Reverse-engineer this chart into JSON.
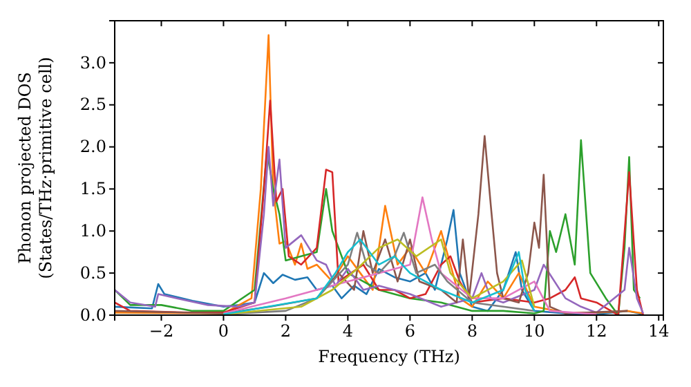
{
  "chart_data": {
    "type": "line",
    "xlabel": "Frequency (THz)",
    "ylabel": "Phonon projected DOS\n(States/THz·primitive cell)",
    "xlim": [
      -3.5,
      14.15
    ],
    "ylim": [
      0,
      3.5
    ],
    "xticks": [
      {
        "value": -2,
        "label": "−2"
      },
      0,
      2,
      4,
      6,
      8,
      10,
      12,
      14
    ],
    "yticks": [
      {
        "value": 0,
        "label": "0.0"
      },
      {
        "value": 0.5,
        "label": "0.5"
      },
      {
        "value": 1,
        "label": "1.0"
      },
      {
        "value": 1.5,
        "label": "1.5"
      },
      {
        "value": 2,
        "label": "2.0"
      },
      {
        "value": 2.5,
        "label": "2.5"
      },
      {
        "value": 3,
        "label": "3.0"
      }
    ],
    "series": [
      {
        "color": "#1f77b4",
        "x": [
          -3.5,
          -2.3,
          -2.1,
          -1.9,
          -1,
          0,
          0.5,
          1,
          1.3,
          1.6,
          1.9,
          2.3,
          2.7,
          3,
          3.5,
          3.8,
          4.2,
          4.6,
          5,
          5.5,
          6,
          6.5,
          6.8,
          7.2,
          7.4,
          7.6,
          8,
          8.5,
          9,
          9.4,
          9.6,
          10,
          11,
          12,
          13,
          13.5
        ],
        "values": [
          0.1,
          0.08,
          0.37,
          0.25,
          0.17,
          0.1,
          0.12,
          0.15,
          0.5,
          0.38,
          0.48,
          0.42,
          0.45,
          0.3,
          0.35,
          0.2,
          0.35,
          0.25,
          0.55,
          0.45,
          0.4,
          0.5,
          0.3,
          0.9,
          1.25,
          0.5,
          0.1,
          0.05,
          0.3,
          0.75,
          0.3,
          0.05,
          0.02,
          0.01,
          0.05,
          0.01
        ]
      },
      {
        "color": "#ff7f0e",
        "x": [
          -3.5,
          0,
          0.9,
          1.2,
          1.45,
          1.6,
          1.8,
          2,
          2.3,
          2.5,
          2.7,
          3,
          3.5,
          4,
          4.4,
          4.8,
          5.2,
          5.6,
          6,
          6.5,
          7,
          7.3,
          7.6,
          8,
          8.5,
          9,
          9.5,
          10,
          11,
          12,
          13,
          13.5
        ],
        "values": [
          0.03,
          0.02,
          0.2,
          1.5,
          3.33,
          1.5,
          0.85,
          0.88,
          0.6,
          0.85,
          0.55,
          0.6,
          0.4,
          0.7,
          0.5,
          0.3,
          1.3,
          0.6,
          0.8,
          0.5,
          1.0,
          0.6,
          0.2,
          0.1,
          0.4,
          0.2,
          0.5,
          0.1,
          0.03,
          0.03,
          0.05,
          0.02
        ]
      },
      {
        "color": "#2ca02c",
        "x": [
          -3.5,
          -3,
          -2,
          -1,
          0,
          1,
          1.4,
          1.6,
          1.8,
          2,
          2.5,
          3,
          3.3,
          3.5,
          4,
          5,
          6,
          7,
          8,
          9,
          10,
          10.3,
          10.5,
          10.7,
          11,
          11.3,
          11.5,
          11.8,
          12.3,
          12.7,
          12.9,
          13.05,
          13.2,
          13.4
        ],
        "values": [
          0.3,
          0.12,
          0.12,
          0.05,
          0.05,
          0.3,
          1.95,
          1.5,
          1.2,
          0.65,
          0.7,
          0.75,
          1.5,
          1.0,
          0.5,
          0.3,
          0.2,
          0.15,
          0.05,
          0.05,
          0.02,
          0.05,
          1.0,
          0.75,
          1.2,
          0.6,
          2.08,
          0.5,
          0.2,
          0.0,
          0.8,
          1.88,
          0.3,
          0.2
        ]
      },
      {
        "color": "#d62728",
        "x": [
          -3.5,
          -3,
          -1,
          0,
          1,
          1.3,
          1.5,
          1.7,
          1.9,
          2.1,
          2.5,
          3,
          3.3,
          3.5,
          3.7,
          4.5,
          5,
          5.5,
          6,
          6.5,
          7,
          7.3,
          7.6,
          8,
          9,
          10,
          10.5,
          11,
          11.3,
          11.5,
          12,
          12.7,
          13.05,
          13.3,
          13.5
        ],
        "values": [
          0.15,
          0.05,
          0.03,
          0.03,
          0.15,
          1.5,
          2.55,
          1.35,
          1.5,
          0.7,
          0.6,
          0.8,
          1.73,
          1.7,
          0.4,
          0.6,
          0.3,
          0.3,
          0.2,
          0.25,
          0.6,
          0.7,
          0.4,
          0.15,
          0.2,
          0.15,
          0.2,
          0.3,
          0.45,
          0.2,
          0.15,
          0.0,
          1.7,
          0.3,
          0.0
        ]
      },
      {
        "color": "#9467bd",
        "x": [
          -3.5,
          -3,
          -2.2,
          -2.1,
          -1.5,
          -0.5,
          0.5,
          1,
          1.3,
          1.45,
          1.6,
          1.8,
          2,
          2.5,
          3,
          3.3,
          3.6,
          4,
          4.5,
          5,
          6,
          7,
          8,
          8.3,
          8.6,
          9,
          10,
          10.3,
          11,
          11.5,
          12,
          12.9,
          13.05,
          13.3,
          13.5
        ],
        "values": [
          0.3,
          0.15,
          0.1,
          0.25,
          0.2,
          0.12,
          0.1,
          0.15,
          1.2,
          2.0,
          1.3,
          1.85,
          0.8,
          0.95,
          0.65,
          0.6,
          0.35,
          0.55,
          0.3,
          0.35,
          0.25,
          0.1,
          0.2,
          0.5,
          0.2,
          0.15,
          0.3,
          0.6,
          0.2,
          0.1,
          0.03,
          0.3,
          0.8,
          0.2,
          0.02
        ]
      },
      {
        "color": "#8c564b",
        "x": [
          -3.5,
          0,
          1.5,
          3,
          3.7,
          4.2,
          4.5,
          4.8,
          5.2,
          5.6,
          6,
          6.3,
          7,
          7.5,
          7.7,
          7.9,
          8.2,
          8.4,
          8.6,
          8.8,
          9,
          9.5,
          9.8,
          10,
          10.15,
          10.3,
          10.5,
          11,
          13
        ],
        "values": [
          0.05,
          0.02,
          0.1,
          0.2,
          0.5,
          0.3,
          1.0,
          0.5,
          0.9,
          0.4,
          0.9,
          0.4,
          0.3,
          0.15,
          0.9,
          0.2,
          1.2,
          2.13,
          1.3,
          0.5,
          0.2,
          0.15,
          0.5,
          1.1,
          0.8,
          1.67,
          0.1,
          0.02,
          0.05
        ]
      },
      {
        "color": "#e377c2",
        "x": [
          0,
          2,
          3,
          4,
          5,
          6,
          6.4,
          6.7,
          7,
          8,
          9,
          10,
          10.5,
          12
        ],
        "values": [
          0.02,
          0.2,
          0.3,
          0.4,
          0.5,
          0.6,
          1.4,
          0.9,
          0.5,
          0.2,
          0.2,
          0.4,
          0.05,
          0.01
        ]
      },
      {
        "color": "#7f7f7f",
        "x": [
          0,
          2,
          3,
          4,
          4.3,
          4.6,
          5,
          5.5,
          5.8,
          6.2,
          6.8,
          7.2,
          8,
          9,
          10
        ],
        "values": [
          0.01,
          0.05,
          0.2,
          0.6,
          0.98,
          0.6,
          0.5,
          0.7,
          0.98,
          0.5,
          0.6,
          0.4,
          0.15,
          0.1,
          0.05
        ]
      },
      {
        "color": "#bcbd22",
        "x": [
          0,
          2.5,
          3.5,
          4.3,
          5,
          5.6,
          6.2,
          7,
          7.3,
          8,
          9,
          9.6,
          10
        ],
        "values": [
          0.01,
          0.1,
          0.3,
          0.55,
          0.8,
          0.9,
          0.7,
          0.9,
          0.5,
          0.2,
          0.4,
          0.65,
          0.1
        ]
      },
      {
        "color": "#17becf",
        "x": [
          0,
          3,
          3.6,
          4,
          4.4,
          5,
          5.5,
          6,
          6.5,
          7,
          8,
          9,
          9.5,
          9.7,
          10
        ],
        "values": [
          0.01,
          0.2,
          0.5,
          0.75,
          0.9,
          0.6,
          0.7,
          0.5,
          0.4,
          0.3,
          0.15,
          0.3,
          0.75,
          0.3,
          0.05
        ]
      }
    ]
  }
}
